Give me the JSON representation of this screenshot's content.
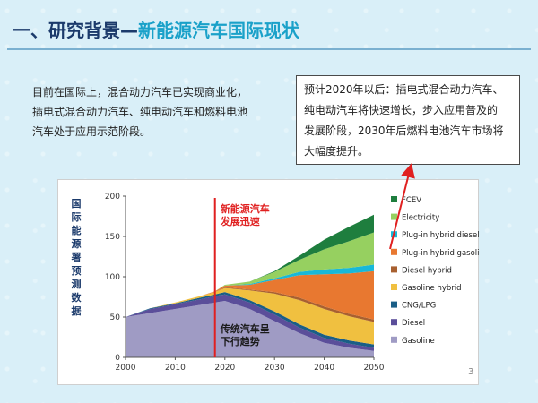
{
  "header": {
    "title_main": "一、研究背景",
    "dash": "—",
    "title_sub": "新能源汽车国际现状"
  },
  "intro_lines": [
    "目前在国际上，混合动力汽车已实现商业化，",
    "插电式混合动力汽车、纯电动汽车和燃料电池",
    "汽车处于应用示范阶段。"
  ],
  "callout_lines": [
    "预计2020年以后：插电式混合动力汽车、",
    "纯电动汽车将快速增长，步入应用普及的",
    "发展阶段，2030年后燃料电池汽车市场将",
    "大幅度提升。"
  ],
  "page_number": "3",
  "colors": {
    "accent_red": "#e02020",
    "arrow": "#e02020",
    "title_dark": "#1b3a6b",
    "title_sub": "#1aa1c9"
  },
  "chart_data": {
    "type": "area",
    "stacked": true,
    "ylabel_chars": [
      "国",
      "际",
      "能",
      "源",
      "署",
      "预",
      "测",
      "数",
      "据"
    ],
    "x": [
      2000,
      2005,
      2010,
      2015,
      2018,
      2020,
      2025,
      2030,
      2035,
      2040,
      2045,
      2050
    ],
    "xticks": [
      2000,
      2010,
      2020,
      2030,
      2040,
      2050
    ],
    "yticks": [
      0,
      50,
      100,
      150,
      200
    ],
    "ylim": [
      0,
      200
    ],
    "xlim": [
      2000,
      2050
    ],
    "series": [
      {
        "name": "Gasoline",
        "color": "#9f9bc4",
        "values": [
          50,
          55,
          60,
          65,
          68,
          70,
          60,
          45,
          30,
          18,
          12,
          8
        ]
      },
      {
        "name": "Diesel",
        "color": "#5b4e9a",
        "values": [
          0,
          5,
          6,
          7,
          8,
          8,
          8,
          8,
          7,
          6,
          5,
          4
        ]
      },
      {
        "name": "CNG/LPG",
        "color": "#1a5e86",
        "values": [
          0,
          1,
          1,
          2,
          2,
          3,
          3,
          4,
          4,
          4,
          4,
          4
        ]
      },
      {
        "name": "Gasoline hybrid",
        "color": "#f0c040",
        "values": [
          0,
          0,
          1,
          2,
          3,
          5,
          12,
          22,
          30,
          32,
          30,
          28
        ]
      },
      {
        "name": "Diesel hybrid",
        "color": "#a86030",
        "values": [
          0,
          0,
          0,
          0,
          0,
          1,
          1,
          2,
          3,
          3,
          3,
          3
        ]
      },
      {
        "name": "Plug-in hybrid gasoline",
        "color": "#e87830",
        "values": [
          0,
          0,
          0,
          0,
          1,
          2,
          6,
          15,
          28,
          40,
          50,
          60
        ]
      },
      {
        "name": "Plug-in hybrid diesel",
        "color": "#18b8d8",
        "values": [
          0,
          0,
          0,
          0,
          0,
          0,
          1,
          2,
          4,
          6,
          7,
          8
        ]
      },
      {
        "name": "Electricity",
        "color": "#96d060",
        "values": [
          0,
          0,
          0,
          0,
          0,
          1,
          3,
          8,
          15,
          25,
          33,
          40
        ]
      },
      {
        "name": "FCEV",
        "color": "#1e7e3e",
        "values": [
          0,
          0,
          0,
          0,
          0,
          0,
          0,
          1,
          5,
          12,
          18,
          22
        ]
      }
    ],
    "annotations": {
      "vline_x": 2018,
      "rise_label_lines": [
        "新能源汽车",
        "发展迅速"
      ],
      "fall_label_lines": [
        "传统汽车呈",
        "下行趋势"
      ]
    }
  }
}
